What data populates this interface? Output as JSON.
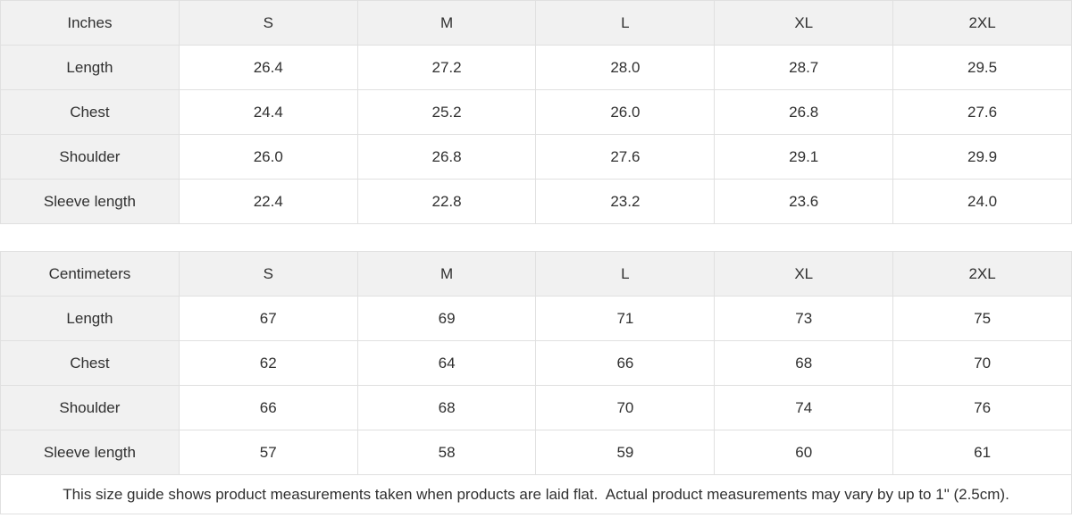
{
  "colors": {
    "header_background": "#f1f1f1",
    "border": "#e0e0e0",
    "text": "#303030"
  },
  "tables": [
    {
      "unit_label": "Inches",
      "sizes": [
        "S",
        "M",
        "L",
        "XL",
        "2XL"
      ],
      "rows": [
        {
          "label": "Length",
          "values": [
            "26.4",
            "27.2",
            "28.0",
            "28.7",
            "29.5"
          ]
        },
        {
          "label": "Chest",
          "values": [
            "24.4",
            "25.2",
            "26.0",
            "26.8",
            "27.6"
          ]
        },
        {
          "label": "Shoulder",
          "values": [
            "26.0",
            "26.8",
            "27.6",
            "29.1",
            "29.9"
          ]
        },
        {
          "label": "Sleeve length",
          "values": [
            "22.4",
            "22.8",
            "23.2",
            "23.6",
            "24.0"
          ]
        }
      ]
    },
    {
      "unit_label": "Centimeters",
      "sizes": [
        "S",
        "M",
        "L",
        "XL",
        "2XL"
      ],
      "rows": [
        {
          "label": "Length",
          "values": [
            "67",
            "69",
            "71",
            "73",
            "75"
          ]
        },
        {
          "label": "Chest",
          "values": [
            "62",
            "64",
            "66",
            "68",
            "70"
          ]
        },
        {
          "label": "Shoulder",
          "values": [
            "66",
            "68",
            "70",
            "74",
            "76"
          ]
        },
        {
          "label": "Sleeve length",
          "values": [
            "57",
            "58",
            "59",
            "60",
            "61"
          ]
        }
      ]
    }
  ],
  "footer": {
    "note": "This size guide shows product measurements taken when products are laid flat.  Actual product measurements may vary by up to 1\" (2.5cm)."
  }
}
